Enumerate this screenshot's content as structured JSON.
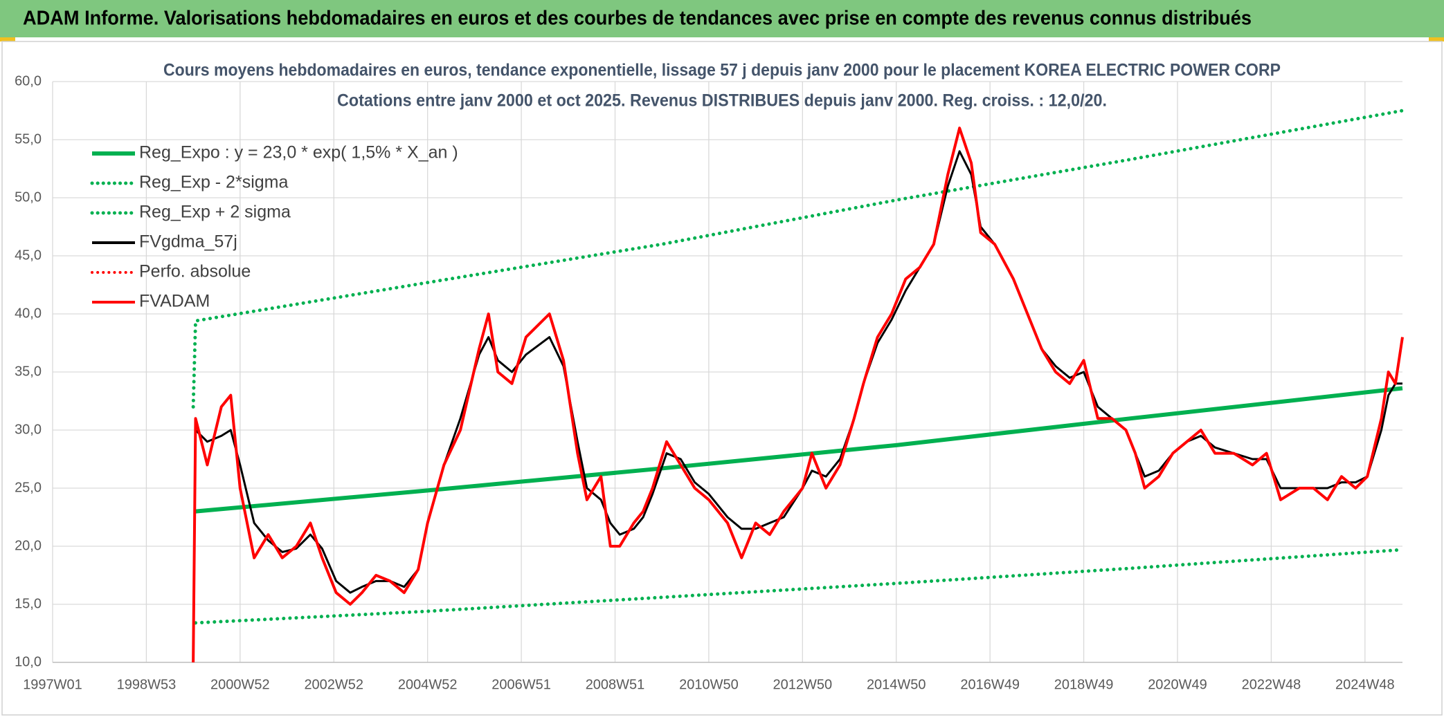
{
  "chart_data": {
    "type": "line",
    "header": "ADAM Informe. Valorisations hebdomadaires en euros et des courbes de tendances avec prise en compte des revenus connus distribués",
    "title": "Cours moyens hebdomadaires en euros, tendance exponentielle, lissage 57 j depuis janv 2000 pour le placement KOREA ELECTRIC POWER CORP",
    "subtitle": "Cotations entre janv 2000 et oct 2025. Revenus DISTRIBUES depuis janv 2000. Reg. croiss. : 12,0/20.",
    "xlim": [
      1997.0,
      2025.8
    ],
    "xticks": [
      {
        "value": 1997.0,
        "label": "1997W01"
      },
      {
        "value": 1999.0,
        "label": "1998W53"
      },
      {
        "value": 2001.0,
        "label": "2000W52"
      },
      {
        "value": 2003.0,
        "label": "2002W52"
      },
      {
        "value": 2005.0,
        "label": "2004W52"
      },
      {
        "value": 2007.0,
        "label": "2006W51"
      },
      {
        "value": 2009.0,
        "label": "2008W51"
      },
      {
        "value": 2011.0,
        "label": "2010W50"
      },
      {
        "value": 2013.0,
        "label": "2012W50"
      },
      {
        "value": 2015.0,
        "label": "2014W50"
      },
      {
        "value": 2017.0,
        "label": "2016W49"
      },
      {
        "value": 2019.0,
        "label": "2018W49"
      },
      {
        "value": 2021.0,
        "label": "2020W49"
      },
      {
        "value": 2023.0,
        "label": "2022W48"
      },
      {
        "value": 2025.0,
        "label": "2024W48"
      }
    ],
    "ylim": [
      10,
      60
    ],
    "yticks": [
      {
        "value": 10,
        "label": "10,0"
      },
      {
        "value": 15,
        "label": "15,0"
      },
      {
        "value": 20,
        "label": "20,0"
      },
      {
        "value": 25,
        "label": "25,0"
      },
      {
        "value": 30,
        "label": "30,0"
      },
      {
        "value": 35,
        "label": "35,0"
      },
      {
        "value": 40,
        "label": "40,0"
      },
      {
        "value": 45,
        "label": "45,0"
      },
      {
        "value": 50,
        "label": "50,0"
      },
      {
        "value": 55,
        "label": "55,0"
      },
      {
        "value": 60,
        "label": "60,0"
      }
    ],
    "grid": true,
    "legend": "top-left",
    "series": [
      {
        "name": "Reg_Expo : y = 23,0 * exp( 1,5% *  X_an )",
        "color": "#00b050",
        "dotted": false,
        "width": 6,
        "x": [
          2000.05,
          2005.0,
          2010.0,
          2015.0,
          2020.0,
          2025.8
        ],
        "values": [
          23.0,
          24.8,
          26.7,
          28.7,
          31.0,
          33.6
        ]
      },
      {
        "name": "Reg_Exp - 2*sigma",
        "color": "#00b050",
        "dotted": true,
        "width": 5,
        "x": [
          2000.05,
          2005.0,
          2010.0,
          2015.0,
          2020.0,
          2025.8
        ],
        "values": [
          13.4,
          14.4,
          15.6,
          16.8,
          18.1,
          19.7
        ]
      },
      {
        "name": "Reg_Exp + 2 sigma",
        "color": "#00b050",
        "dotted": true,
        "width": 5,
        "x": [
          2000.0,
          2000.05,
          2005.0,
          2010.0,
          2015.0,
          2020.0,
          2025.8
        ],
        "values": [
          32.0,
          39.4,
          42.7,
          46.0,
          49.8,
          53.3,
          57.5
        ]
      },
      {
        "name": "FVgdma_57j",
        "color": "#000000",
        "dotted": false,
        "width": 3,
        "x": [
          2000.05,
          2000.3,
          2000.6,
          2000.8,
          2001.0,
          2001.3,
          2001.6,
          2001.9,
          2002.2,
          2002.5,
          2002.75,
          2003.05,
          2003.35,
          2003.6,
          2003.9,
          2004.2,
          2004.5,
          2004.8,
          2005.0,
          2005.35,
          2005.7,
          2006.1,
          2006.3,
          2006.5,
          2006.8,
          2007.1,
          2007.6,
          2007.9,
          2008.2,
          2008.4,
          2008.7,
          2008.9,
          2009.1,
          2009.4,
          2009.6,
          2009.8,
          2010.1,
          2010.4,
          2010.7,
          2011.0,
          2011.4,
          2011.7,
          2012.0,
          2012.3,
          2012.6,
          2013.0,
          2013.2,
          2013.5,
          2013.8,
          2014.1,
          2014.3,
          2014.6,
          2014.9,
          2015.2,
          2015.5,
          2015.8,
          2016.1,
          2016.35,
          2016.6,
          2016.8,
          2017.1,
          2017.5,
          2017.8,
          2018.1,
          2018.4,
          2018.7,
          2019.0,
          2019.3,
          2019.6,
          2019.9,
          2020.1,
          2020.3,
          2020.6,
          2020.9,
          2021.2,
          2021.5,
          2021.8,
          2022.2,
          2022.6,
          2022.9,
          2023.2,
          2023.6,
          2023.9,
          2024.2,
          2024.5,
          2024.8,
          2025.05,
          2025.35,
          2025.5,
          2025.65,
          2025.8
        ],
        "values": [
          30,
          29,
          29.5,
          30,
          27,
          22,
          20.5,
          19.5,
          19.8,
          21,
          19.8,
          17,
          16,
          16.5,
          17,
          17,
          16.5,
          18,
          22,
          27,
          31,
          36.5,
          38,
          36,
          35,
          36.5,
          38,
          35.5,
          29,
          25,
          24,
          22,
          21,
          21.5,
          22.5,
          24.5,
          28,
          27.5,
          25.5,
          24.5,
          22.5,
          21.5,
          21.5,
          22,
          22.5,
          25,
          26.5,
          26,
          27.5,
          31,
          34,
          37.5,
          39.5,
          42,
          44,
          46,
          51,
          54,
          52,
          47.5,
          46,
          43,
          40,
          37,
          35.5,
          34.5,
          35,
          32,
          31,
          30,
          28,
          26,
          26.5,
          28,
          29,
          29.5,
          28.5,
          28,
          27.5,
          27.5,
          25,
          25,
          25,
          25,
          25.5,
          25.5,
          26,
          30,
          33,
          34,
          34
        ]
      },
      {
        "name": "Perfo. absolue",
        "color": "#ff0000",
        "dotted": true,
        "width": 3,
        "x": [],
        "values": []
      },
      {
        "name": "FVADAM",
        "color": "#ff0000",
        "dotted": false,
        "width": 4,
        "x": [
          2000.0,
          2000.05,
          2000.3,
          2000.6,
          2000.8,
          2001.0,
          2001.3,
          2001.6,
          2001.9,
          2002.2,
          2002.5,
          2002.75,
          2003.05,
          2003.35,
          2003.6,
          2003.9,
          2004.2,
          2004.5,
          2004.8,
          2005.0,
          2005.35,
          2005.7,
          2006.1,
          2006.3,
          2006.5,
          2006.8,
          2007.1,
          2007.6,
          2007.9,
          2008.2,
          2008.4,
          2008.7,
          2008.9,
          2009.1,
          2009.4,
          2009.6,
          2009.8,
          2010.1,
          2010.4,
          2010.7,
          2011.0,
          2011.4,
          2011.7,
          2012.0,
          2012.3,
          2012.6,
          2013.0,
          2013.2,
          2013.5,
          2013.8,
          2014.1,
          2014.3,
          2014.6,
          2014.9,
          2015.2,
          2015.5,
          2015.8,
          2016.1,
          2016.35,
          2016.6,
          2016.8,
          2017.1,
          2017.5,
          2017.8,
          2018.1,
          2018.4,
          2018.7,
          2019.0,
          2019.3,
          2019.6,
          2019.9,
          2020.1,
          2020.3,
          2020.6,
          2020.9,
          2021.2,
          2021.5,
          2021.8,
          2022.2,
          2022.6,
          2022.9,
          2023.2,
          2023.6,
          2023.9,
          2024.2,
          2024.5,
          2024.8,
          2025.05,
          2025.35,
          2025.5,
          2025.65,
          2025.8
        ],
        "values": [
          10,
          31,
          27,
          32,
          33,
          25,
          19,
          21,
          19,
          20,
          22,
          19,
          16,
          15,
          16,
          17.5,
          17,
          16,
          18,
          22,
          27,
          30,
          37,
          40,
          35,
          34,
          38,
          40,
          36,
          28,
          24,
          26,
          20,
          20,
          22,
          23,
          25,
          29,
          27,
          25,
          24,
          22,
          19,
          22,
          21,
          23,
          25,
          28,
          25,
          27,
          31,
          34,
          38,
          40,
          43,
          44,
          46,
          52,
          56,
          53,
          47,
          46,
          43,
          40,
          37,
          35,
          34,
          36,
          31,
          31,
          30,
          28,
          25,
          26,
          28,
          29,
          30,
          28,
          28,
          27,
          28,
          24,
          25,
          25,
          24,
          26,
          25,
          26,
          31,
          35,
          34,
          38
        ]
      }
    ]
  }
}
